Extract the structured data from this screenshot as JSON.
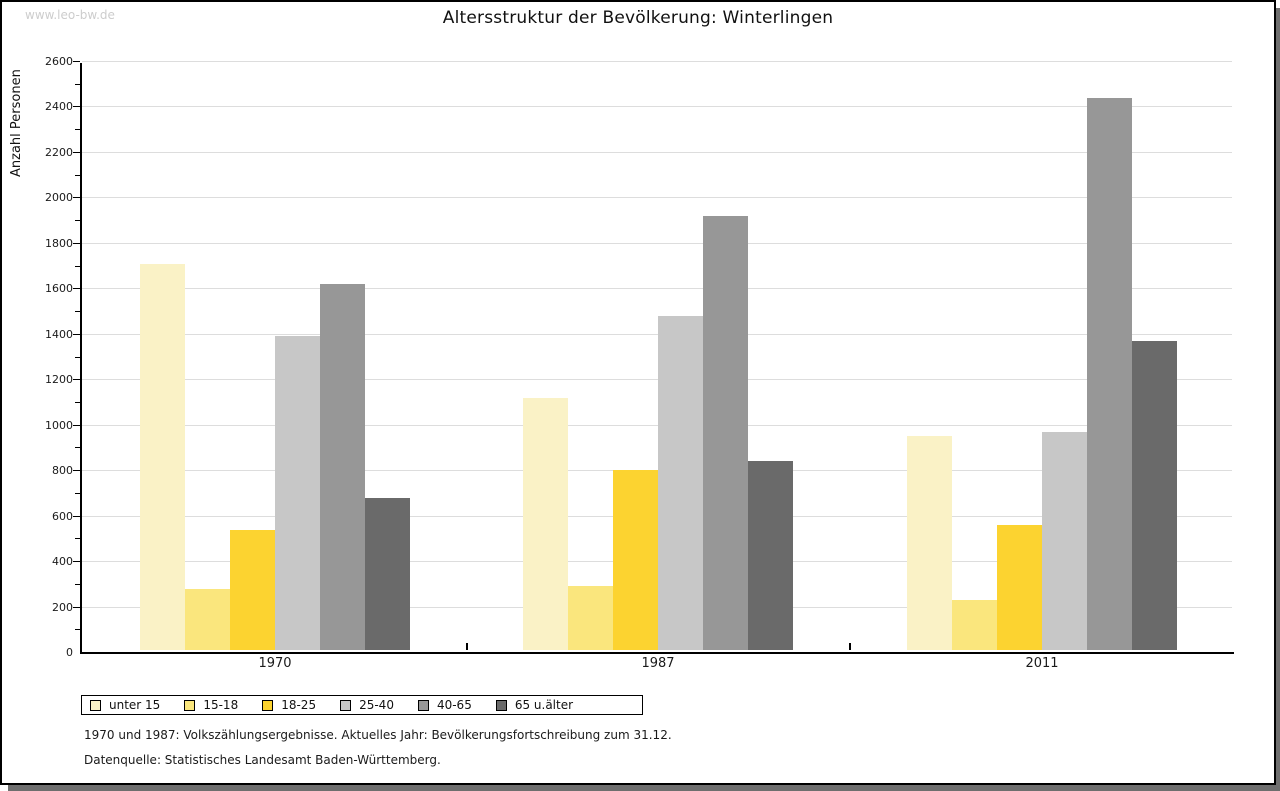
{
  "watermark": "www.leo-bw.de",
  "title": "Altersstruktur der Bevölkerung: Winterlingen",
  "footnotes": {
    "line1": "1970 und 1987: Volkszählungsergebnisse. Aktuelles Jahr: Bevölkerungsfortschreibung zum 31.12.",
    "line2": "Datenquelle: Statistisches Landesamt Baden-Württemberg."
  },
  "chart_data": {
    "type": "bar",
    "title": "Altersstruktur der Bevölkerung: Winterlingen",
    "xlabel": "",
    "ylabel": "Anzahl Personen",
    "ylim": [
      0,
      2600
    ],
    "ytick_major_step": 200,
    "ytick_minor_step": 100,
    "grid": true,
    "legend_position": "bottom",
    "categories": [
      "1970",
      "1987",
      "2011"
    ],
    "series": [
      {
        "name": "unter 15",
        "color": "#FAF2C6",
        "values": [
          1700,
          1110,
          940
        ]
      },
      {
        "name": "15-18",
        "color": "#FAE67D",
        "values": [
          270,
          280,
          220
        ]
      },
      {
        "name": "18-25",
        "color": "#FCD330",
        "values": [
          530,
          790,
          550
        ]
      },
      {
        "name": "25-40",
        "color": "#C7C7C7",
        "values": [
          1380,
          1470,
          960
        ]
      },
      {
        "name": "40-65",
        "color": "#979797",
        "values": [
          1610,
          1910,
          2430
        ]
      },
      {
        "name": "65 u.älter",
        "color": "#6A6A6A",
        "values": [
          670,
          830,
          1360
        ]
      }
    ]
  }
}
